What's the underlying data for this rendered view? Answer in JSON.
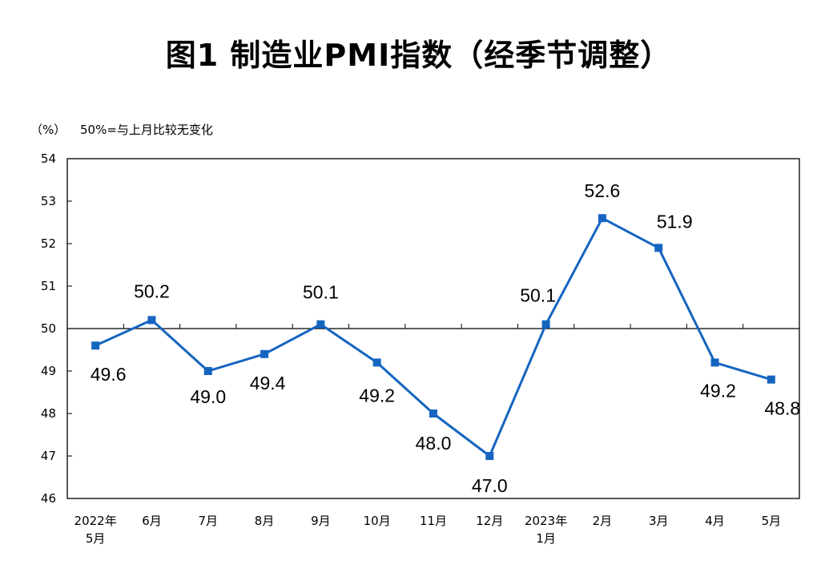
{
  "title": "图1 制造业PMI指数（经季节调整）",
  "chart_data": {
    "type": "line",
    "unit_label": "（%）",
    "reference_note": "50%=与上月比较无变化",
    "reference_value": 50,
    "ylim": [
      46,
      54
    ],
    "yticks": [
      46,
      47,
      48,
      49,
      50,
      51,
      52,
      53,
      54
    ],
    "categories": [
      [
        "2022年",
        "5月"
      ],
      [
        "6月"
      ],
      [
        "7月"
      ],
      [
        "8月"
      ],
      [
        "9月"
      ],
      [
        "10月"
      ],
      [
        "11月"
      ],
      [
        "12月"
      ],
      [
        "2023年",
        "1月"
      ],
      [
        "2月"
      ],
      [
        "3月"
      ],
      [
        "4月"
      ],
      [
        "5月"
      ]
    ],
    "series": [
      {
        "color": "#1565C0",
        "values": [
          49.6,
          50.2,
          49.0,
          49.4,
          50.1,
          49.2,
          48.0,
          47.0,
          50.1,
          52.6,
          51.9,
          49.2,
          48.8
        ],
        "labels": [
          "49.6",
          "50.2",
          "49.0",
          "49.4",
          "50.1",
          "49.2",
          "48.0",
          "47.0",
          "50.1",
          "52.6",
          "51.9",
          "49.2",
          "48.8"
        ]
      }
    ]
  }
}
